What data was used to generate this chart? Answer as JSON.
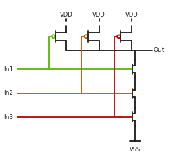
{
  "fig_width": 2.55,
  "fig_height": 2.27,
  "dpi": 100,
  "bg_color": "#ffffff",
  "line_color": "#1a1a1a",
  "green_color": "#5cb800",
  "orange_color": "#c85000",
  "red_color": "#c00000",
  "labels": {
    "vdd": "VDD",
    "vss": "VSS",
    "out": "Out",
    "in1": "In1",
    "in2": "In2",
    "in3": "In3"
  }
}
